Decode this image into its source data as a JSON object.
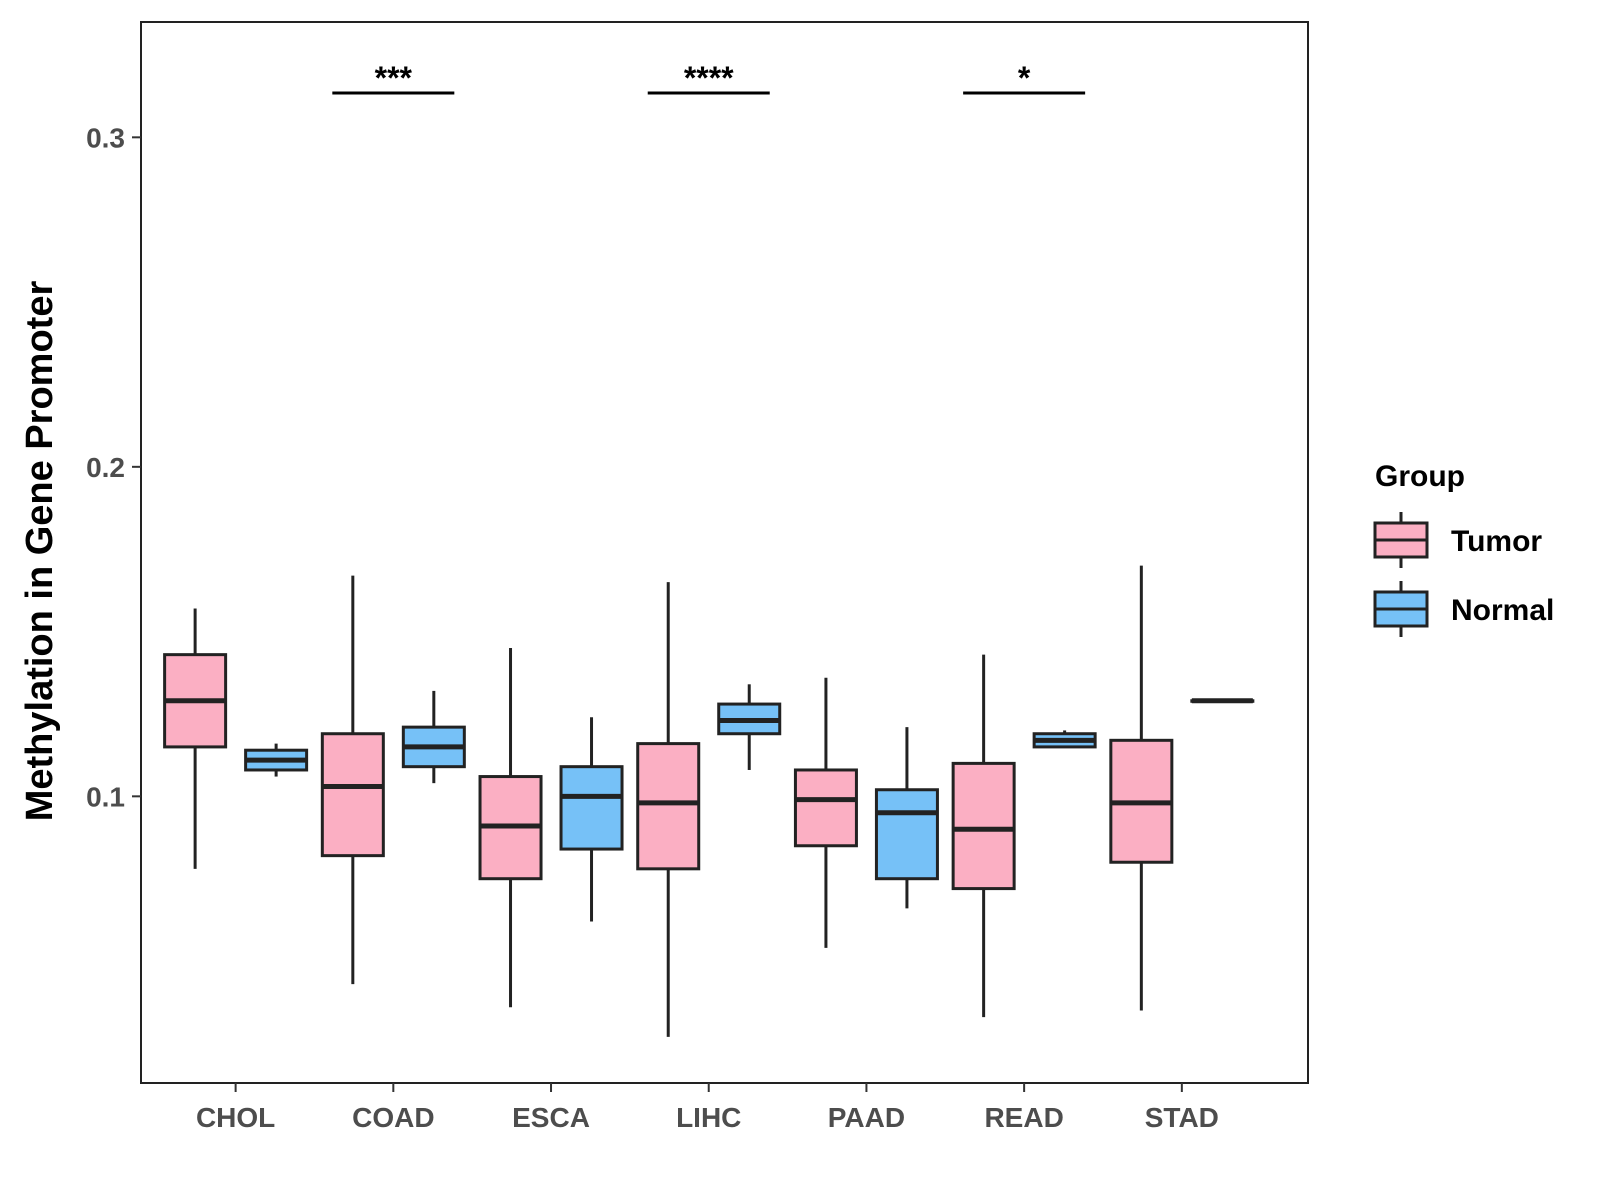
{
  "chart_data": {
    "type": "boxplot",
    "title": "",
    "xlabel": "",
    "ylabel": "Methylation in Gene Promoter",
    "ylim": [
      0.013,
      0.335
    ],
    "yticks": [
      0.1,
      0.2,
      0.3
    ],
    "ytick_labels": [
      "0.1",
      "0.2",
      "0.3"
    ],
    "grid": false,
    "categories": [
      "CHOL",
      "COAD",
      "ESCA",
      "LIHC",
      "PAAD",
      "READ",
      "STAD"
    ],
    "legend": {
      "title": "Group",
      "position": "right",
      "entries": [
        {
          "name": "Tumor",
          "color": "#FBAFC3"
        },
        {
          "name": "Normal",
          "color": "#76C1F7"
        }
      ]
    },
    "series": [
      {
        "name": "Tumor",
        "color": "#FBAFC3",
        "boxes": [
          {
            "category": "CHOL",
            "min": 0.078,
            "q1": 0.115,
            "median": 0.129,
            "q3": 0.143,
            "max": 0.157
          },
          {
            "category": "COAD",
            "min": 0.043,
            "q1": 0.082,
            "median": 0.103,
            "q3": 0.119,
            "max": 0.167
          },
          {
            "category": "ESCA",
            "min": 0.036,
            "q1": 0.075,
            "median": 0.091,
            "q3": 0.106,
            "max": 0.145
          },
          {
            "category": "LIHC",
            "min": 0.027,
            "q1": 0.078,
            "median": 0.098,
            "q3": 0.116,
            "max": 0.165
          },
          {
            "category": "PAAD",
            "min": 0.054,
            "q1": 0.085,
            "median": 0.099,
            "q3": 0.108,
            "max": 0.136
          },
          {
            "category": "READ",
            "min": 0.033,
            "q1": 0.072,
            "median": 0.09,
            "q3": 0.11,
            "max": 0.143
          },
          {
            "category": "STAD",
            "min": 0.035,
            "q1": 0.08,
            "median": 0.098,
            "q3": 0.117,
            "max": 0.17
          }
        ]
      },
      {
        "name": "Normal",
        "color": "#76C1F7",
        "boxes": [
          {
            "category": "CHOL",
            "min": 0.106,
            "q1": 0.108,
            "median": 0.111,
            "q3": 0.114,
            "max": 0.116
          },
          {
            "category": "COAD",
            "min": 0.104,
            "q1": 0.109,
            "median": 0.115,
            "q3": 0.121,
            "max": 0.132
          },
          {
            "category": "ESCA",
            "min": 0.062,
            "q1": 0.084,
            "median": 0.1,
            "q3": 0.109,
            "max": 0.124
          },
          {
            "category": "LIHC",
            "min": 0.108,
            "q1": 0.119,
            "median": 0.123,
            "q3": 0.128,
            "max": 0.134
          },
          {
            "category": "PAAD",
            "min": 0.066,
            "q1": 0.075,
            "median": 0.095,
            "q3": 0.102,
            "max": 0.121
          },
          {
            "category": "READ",
            "min": 0.115,
            "q1": 0.115,
            "median": 0.117,
            "q3": 0.119,
            "max": 0.12
          },
          {
            "category": "STAD",
            "min": 0.129,
            "q1": 0.129,
            "median": 0.129,
            "q3": 0.129,
            "max": 0.129
          }
        ]
      }
    ],
    "annotations": [
      {
        "category": "COAD",
        "label": "***"
      },
      {
        "category": "LIHC",
        "label": "****"
      },
      {
        "category": "READ",
        "label": "*"
      }
    ]
  }
}
